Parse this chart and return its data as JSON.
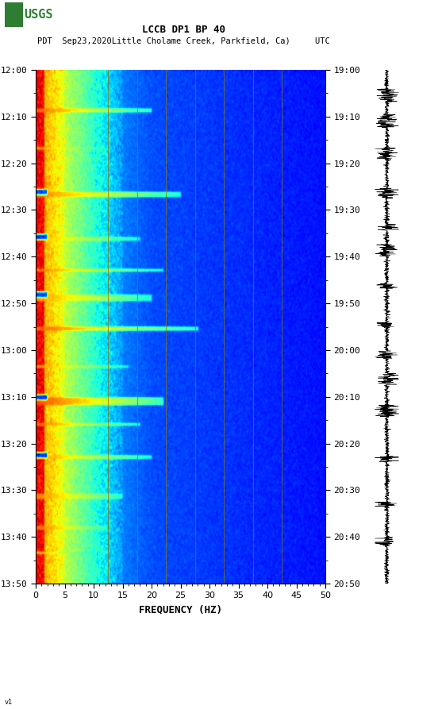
{
  "title_line1": "LCCB DP1 BP 40",
  "title_line2": "PDT  Sep23,2020Little Cholame Creek, Parkfield, Ca)     UTC",
  "xlabel": "FREQUENCY (HZ)",
  "freq_min": 0,
  "freq_max": 50,
  "freq_ticks": [
    0,
    5,
    10,
    15,
    20,
    25,
    30,
    35,
    40,
    45,
    50
  ],
  "time_ticks_pdt": [
    "12:00",
    "12:10",
    "12:20",
    "12:30",
    "12:40",
    "12:50",
    "13:00",
    "13:10",
    "13:20",
    "13:30",
    "13:40",
    "13:50"
  ],
  "time_ticks_utc": [
    "19:00",
    "19:10",
    "19:20",
    "19:30",
    "19:40",
    "19:50",
    "20:00",
    "20:10",
    "20:20",
    "20:30",
    "20:40",
    "20:50"
  ],
  "grid_freq_lines": [
    12.5,
    17.5,
    22.5,
    27.5,
    32.5,
    37.5,
    42.5
  ],
  "background_color": "#ffffff",
  "colormap": "jet",
  "vmin": 0.0,
  "vmax": 1.0
}
